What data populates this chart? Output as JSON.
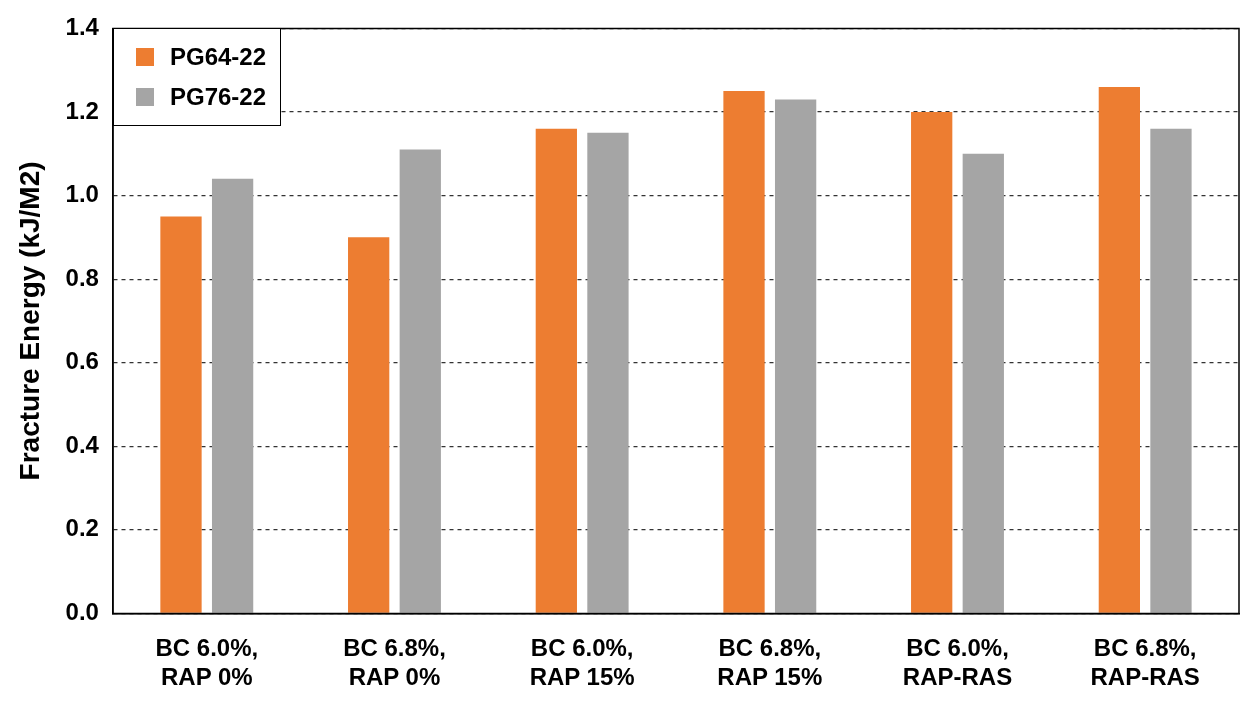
{
  "chart_data": {
    "type": "bar",
    "ylabel": "Fracture Energy (kJ/M2)",
    "categories": [
      "BC 6.0%,\nRAP 0%",
      "BC 6.8%,\nRAP 0%",
      "BC 6.0%,\nRAP 15%",
      "BC 6.8%,\nRAP 15%",
      "BC 6.0%,\nRAP-RAS",
      "BC 6.8%,\nRAP-RAS"
    ],
    "series": [
      {
        "name": "PG64-22",
        "color": "#ed7d31",
        "values": [
          0.95,
          0.9,
          1.16,
          1.25,
          1.2,
          1.26
        ]
      },
      {
        "name": "PG76-22",
        "color": "#a5a5a5",
        "values": [
          1.04,
          1.11,
          1.15,
          1.23,
          1.1,
          1.16
        ]
      }
    ],
    "ylim": [
      0,
      1.4
    ],
    "yticks": [
      {
        "value": 0,
        "label": "0.0"
      },
      {
        "value": 0.2,
        "label": "0.2"
      },
      {
        "value": 0.4,
        "label": "0.4"
      },
      {
        "value": 0.6,
        "label": "0.6"
      },
      {
        "value": 0.8,
        "label": "0.8"
      },
      {
        "value": 1,
        "label": "1.0"
      },
      {
        "value": 1.2,
        "label": "1.2"
      },
      {
        "value": 1.4,
        "label": "1.4"
      }
    ],
    "grid": "y",
    "legend": "top left"
  }
}
